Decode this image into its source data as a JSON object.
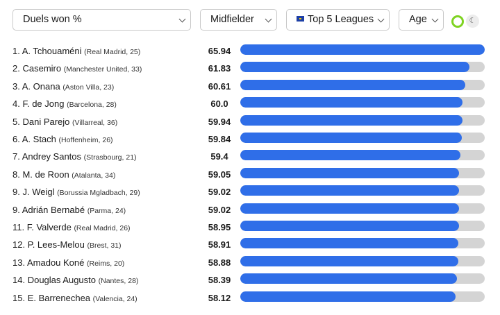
{
  "filters": {
    "metric": "Duels won %",
    "position": "Midfielder",
    "league": "Top 5 Leagues",
    "age": "Age"
  },
  "icons": {
    "toggle": "toggle-icon",
    "theme": "moon-icon"
  },
  "colors": {
    "bar": "#2f6ee8",
    "track": "#d4d4d4",
    "toggle": "#7ed321"
  },
  "chart_data": {
    "type": "bar",
    "orientation": "horizontal",
    "xlim": [
      0,
      65.94
    ],
    "rows": [
      {
        "rank": "1.",
        "name": "A. Tchouaméni",
        "meta": "(Real Madrid, 25)",
        "value": "65.94",
        "v": 65.94
      },
      {
        "rank": "2.",
        "name": "Casemiro",
        "meta": "(Manchester United, 33)",
        "value": "61.83",
        "v": 61.83
      },
      {
        "rank": "3.",
        "name": "A. Onana",
        "meta": "(Aston Villa, 23)",
        "value": "60.61",
        "v": 60.61
      },
      {
        "rank": "4.",
        "name": "F. de Jong",
        "meta": "(Barcelona, 28)",
        "value": "60.0",
        "v": 60.0
      },
      {
        "rank": "5.",
        "name": "Dani Parejo",
        "meta": "(Villarreal, 36)",
        "value": "59.94",
        "v": 59.94
      },
      {
        "rank": "6.",
        "name": "A. Stach",
        "meta": "(Hoffenheim, 26)",
        "value": "59.84",
        "v": 59.84
      },
      {
        "rank": "7.",
        "name": "Andrey Santos",
        "meta": "(Strasbourg, 21)",
        "value": "59.4",
        "v": 59.4
      },
      {
        "rank": "8.",
        "name": "M. de Roon",
        "meta": "(Atalanta, 34)",
        "value": "59.05",
        "v": 59.05
      },
      {
        "rank": "9.",
        "name": "J. Weigl",
        "meta": "(Borussia Mgladbach, 29)",
        "value": "59.02",
        "v": 59.02
      },
      {
        "rank": "9.",
        "name": "Adrián Bernabé",
        "meta": "(Parma, 24)",
        "value": "59.02",
        "v": 59.02
      },
      {
        "rank": "11.",
        "name": "F. Valverde",
        "meta": "(Real Madrid, 26)",
        "value": "58.95",
        "v": 58.95
      },
      {
        "rank": "12.",
        "name": "P. Lees-Melou",
        "meta": "(Brest, 31)",
        "value": "58.91",
        "v": 58.91
      },
      {
        "rank": "13.",
        "name": "Amadou Koné",
        "meta": "(Reims, 20)",
        "value": "58.88",
        "v": 58.88
      },
      {
        "rank": "14.",
        "name": "Douglas Augusto",
        "meta": "(Nantes, 28)",
        "value": "58.39",
        "v": 58.39
      },
      {
        "rank": "15.",
        "name": "E. Barrenechea",
        "meta": "(Valencia, 24)",
        "value": "58.12",
        "v": 58.12
      }
    ]
  }
}
